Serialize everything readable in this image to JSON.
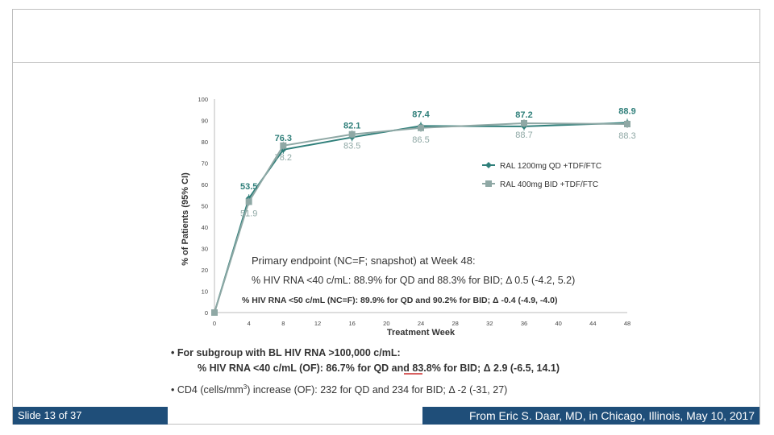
{
  "footer": {
    "slide": "Slide 13 of 37",
    "credit": "From Eric S. Daar, MD, in Chicago, Illinois, May 10, 2017"
  },
  "colors": {
    "qd": "#2f7f7a",
    "bid": "#8fa8a5",
    "text": "#333333",
    "footer_bg": "#1f4e79"
  },
  "endpoint": {
    "line1": "Primary endpoint (NC=F; snapshot) at Week 48:",
    "line2": "% HIV RNA <40 c/mL: 88.9% for QD and 88.3% for BID; Δ 0.5 (-4.2, 5.2)",
    "line3": "% HIV RNA <50 c/mL (NC=F): 89.9% for QD and 90.2% for BID; Δ -0.4 (-4.9, -4.0)"
  },
  "notes": {
    "b1_line1": "• For subgroup with BL HIV RNA >100,000 c/mL:",
    "b1_line2": "% HIV RNA <40 c/mL (OF):  86.7% for QD and 83.8% for BID; Δ 2.9 (-6.5, 14.1)",
    "b2_pre": "• CD4 (cells/mm",
    "b2_sup": "3",
    "b2_post": ") increase (OF):  232 for QD and 234 for BID; Δ -2 (-31, 27)"
  },
  "chart_data": {
    "type": "line",
    "title": "",
    "xlabel": "Treatment Week",
    "ylabel": "% of Patients (95% CI)",
    "xlim": [
      0,
      48
    ],
    "ylim": [
      0,
      100
    ],
    "x_ticks": [
      0,
      4,
      8,
      12,
      16,
      20,
      24,
      28,
      32,
      36,
      40,
      44,
      48
    ],
    "y_ticks": [
      0,
      10,
      20,
      30,
      40,
      50,
      60,
      70,
      80,
      90,
      100
    ],
    "series": [
      {
        "name": "RAL 1200mg QD +TDF/FTC",
        "x": [
          0,
          4,
          8,
          16,
          24,
          36,
          48
        ],
        "y": [
          0,
          53.5,
          76.3,
          82.1,
          87.4,
          87.2,
          88.9
        ],
        "labels": [
          "",
          "53.5",
          "76.3",
          "82.1",
          "87.4",
          "87.2",
          "88.9"
        ]
      },
      {
        "name": "RAL 400mg BID +TDF/FTC",
        "x": [
          0,
          4,
          8,
          16,
          24,
          36,
          48
        ],
        "y": [
          0,
          51.9,
          78.2,
          83.5,
          86.5,
          88.7,
          88.3
        ],
        "labels": [
          "",
          "51.9",
          "78.2",
          "83.5",
          "86.5",
          "88.7",
          "88.3"
        ]
      }
    ]
  }
}
